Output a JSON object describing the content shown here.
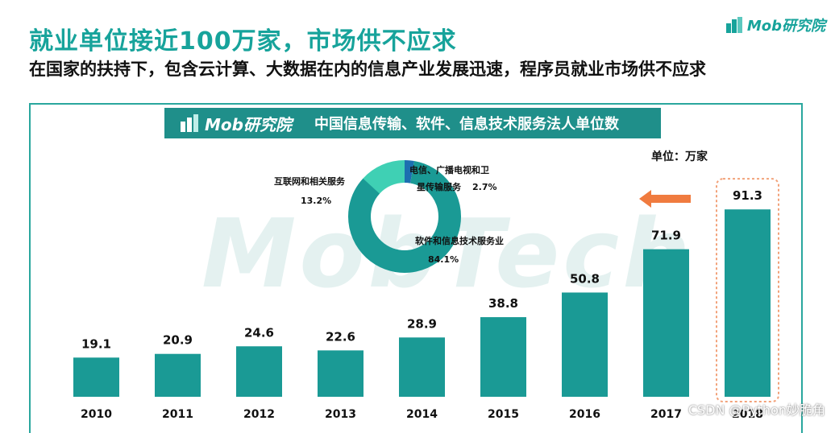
{
  "header": {
    "title": "就业单位接近100万家，市场供不应求",
    "subtitle": "在国家的扶持下，包含云计算、大数据在内的信息产业发展迅速，程序员就业市场供不应求",
    "brand": "Mob研究院"
  },
  "watermark": "MobTech",
  "footer": {
    "credit": "CSDN @Python妙脆角"
  },
  "colors": {
    "accent": "#17a39b",
    "bar": "#1a9a95",
    "donut_main": "#1a9a95",
    "donut_light": "#3fd0b4",
    "donut_blue": "#1c6fb0",
    "arrow": "#f07b3f",
    "highlight": "#f2a27a"
  },
  "chart_data": [
    {
      "type": "bar",
      "title": "中国信息传输、软件、信息技术服务法人单位数",
      "unit_label": "单位：万家",
      "categories": [
        "2010",
        "2011",
        "2012",
        "2013",
        "2014",
        "2015",
        "2016",
        "2017",
        "2018"
      ],
      "values": [
        19.1,
        20.9,
        24.6,
        22.6,
        28.9,
        38.8,
        50.8,
        71.9,
        91.3
      ],
      "value_labels": [
        "19.1",
        "20.9",
        "24.6",
        "22.6",
        "28.9",
        "38.8",
        "50.8",
        "71.9",
        "91.3"
      ],
      "highlight_category": "2018",
      "ylim": [
        0,
        95
      ],
      "grid": false
    },
    {
      "type": "pie",
      "style": "donut",
      "slices": [
        {
          "label": "软件和信息技术服务业",
          "value": 84.1,
          "value_label": "84.1%"
        },
        {
          "label": "互联网和相关服务",
          "value": 13.2,
          "value_label": "13.2%"
        },
        {
          "label": "电信、广播电视和卫星传输服务",
          "value": 2.7,
          "value_label": "2.7%"
        }
      ]
    }
  ]
}
